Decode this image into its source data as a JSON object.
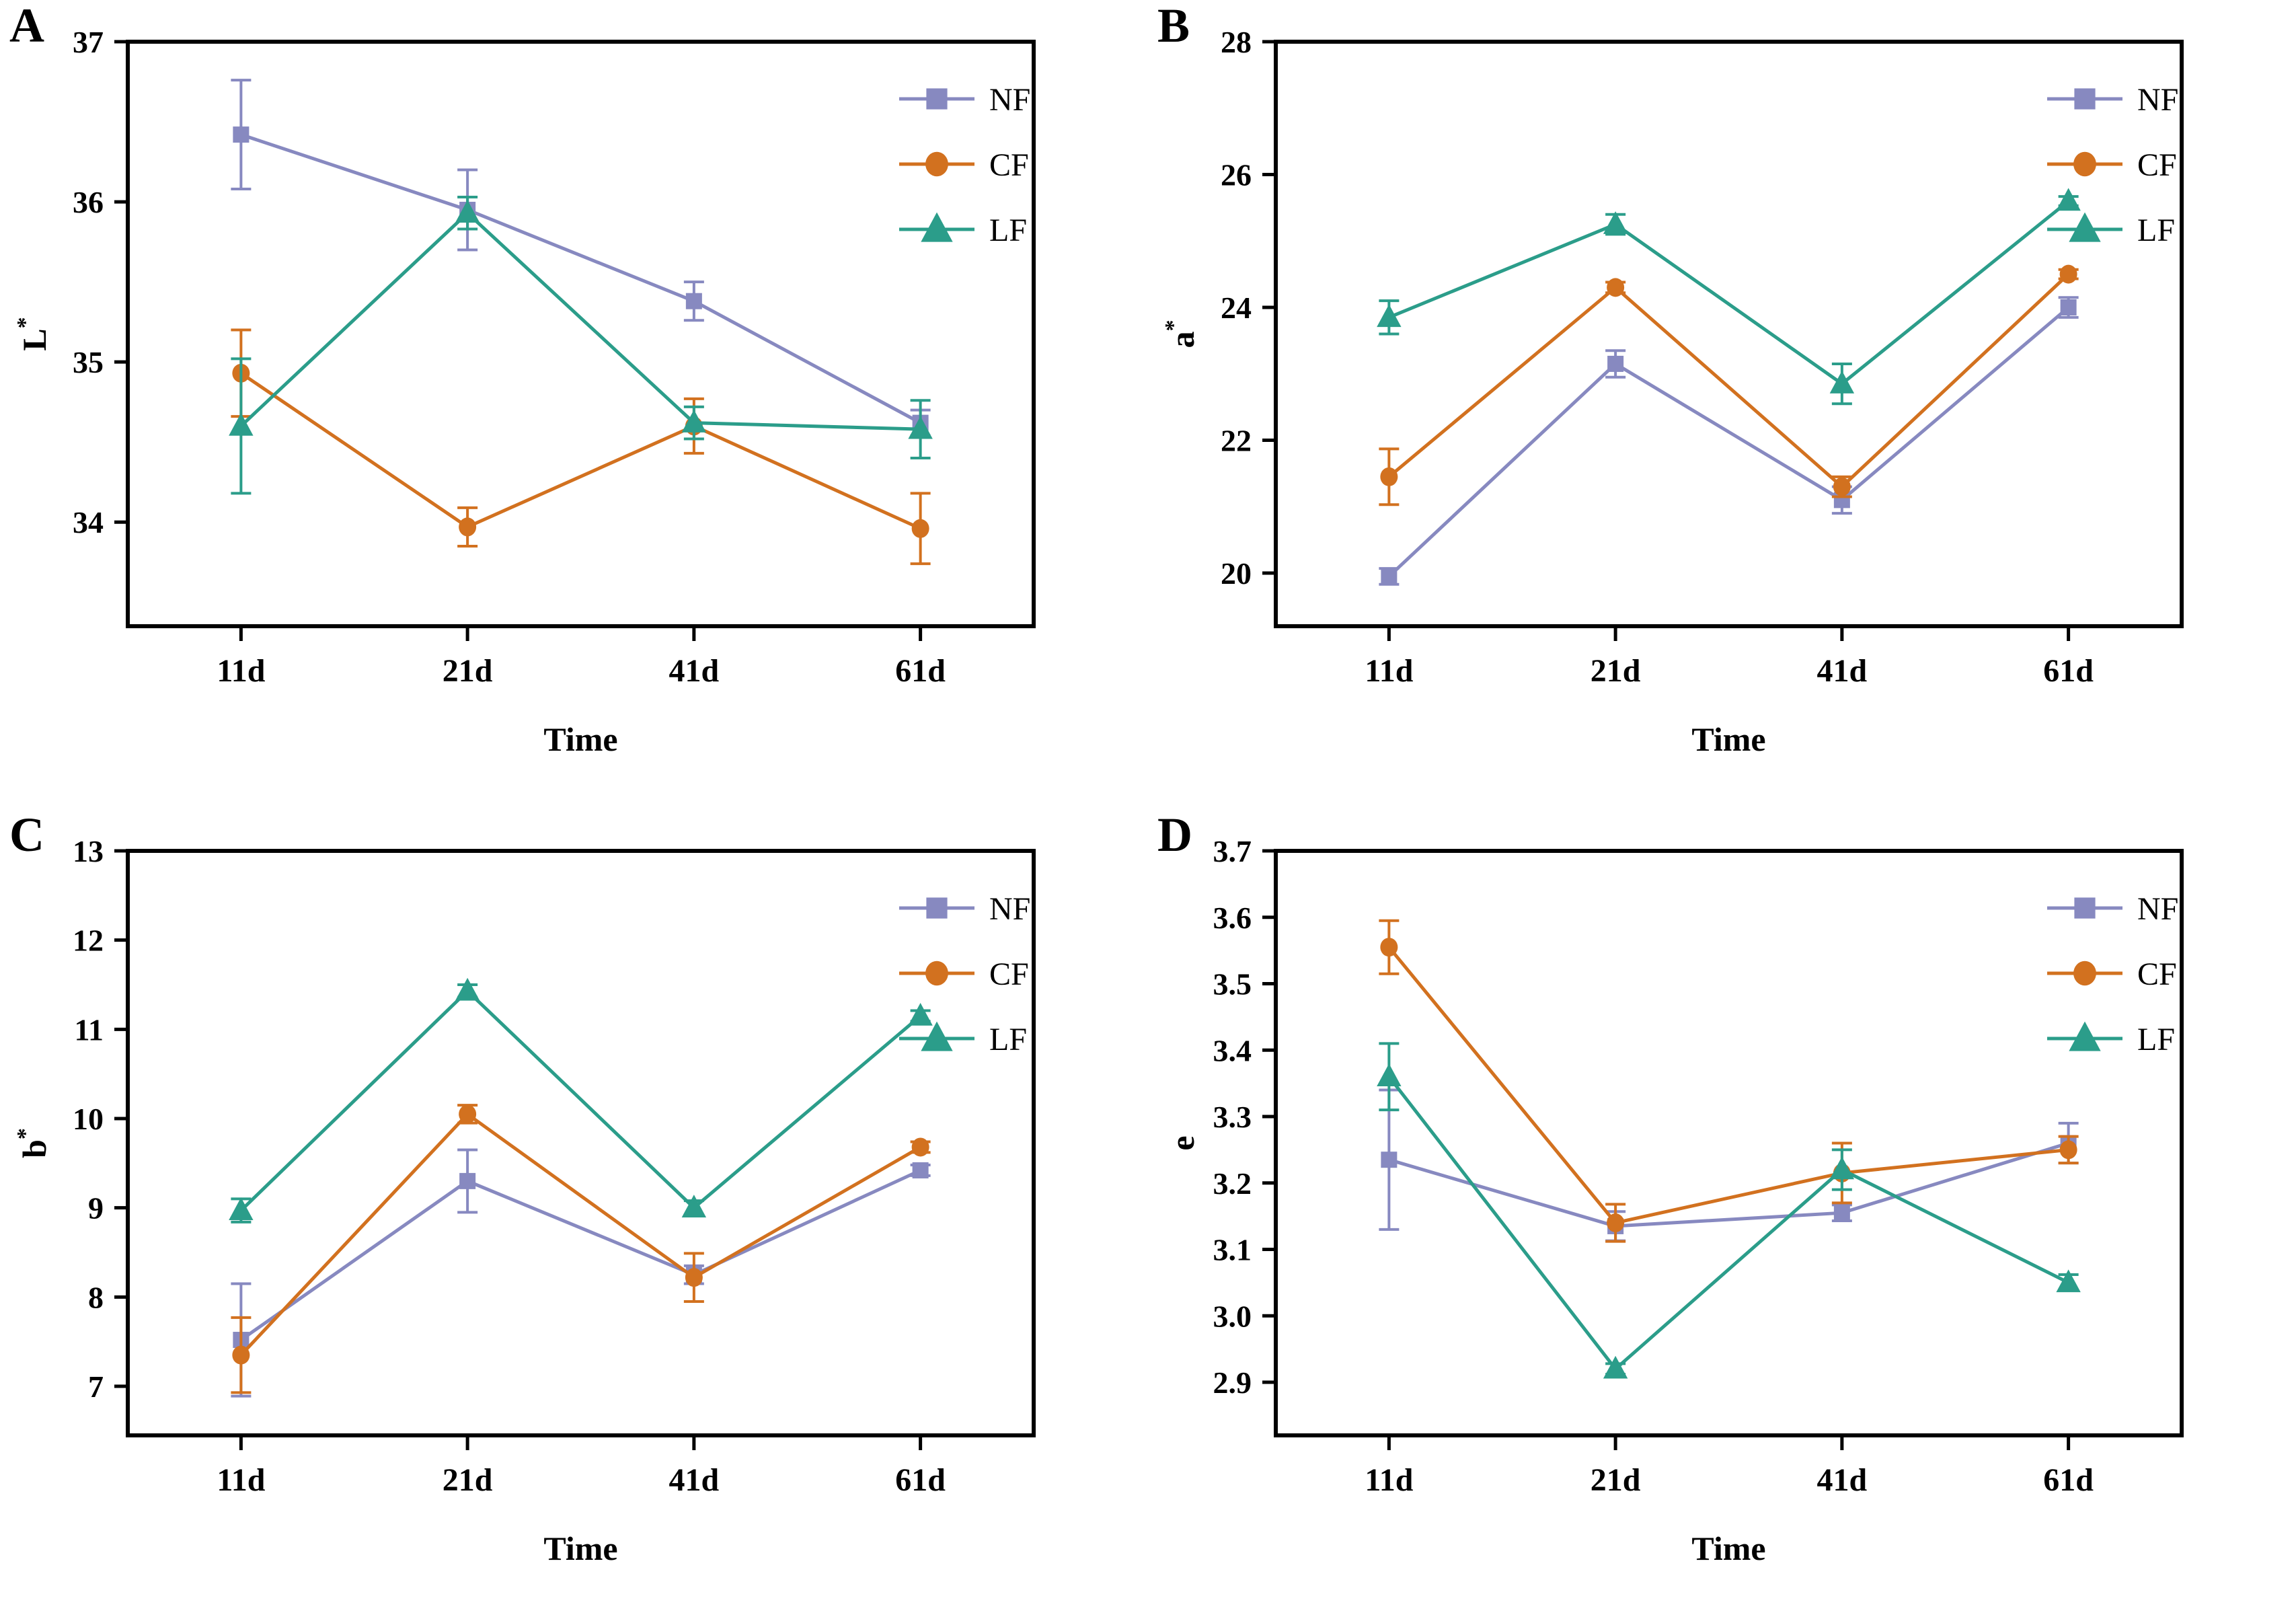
{
  "figure": {
    "background": "#ffffff",
    "panel_letters": [
      "A",
      "B",
      "C",
      "D"
    ],
    "x_axis_title": "Time",
    "x_categories": [
      "11d",
      "21d",
      "41d",
      "61d"
    ],
    "legend_items": [
      "NF",
      "CF",
      "LF"
    ]
  },
  "series_colors": {
    "NF": "#8789c0",
    "CF": "#d2711f",
    "LF": "#2b9d8a"
  },
  "axis_color": "#000000",
  "chart_data": [
    {
      "panel_label": "A",
      "type": "line",
      "title": "",
      "xlabel": "Time",
      "ylabel": "L",
      "ylabel_superscript": "*",
      "categories": [
        "11d",
        "21d",
        "41d",
        "61d"
      ],
      "ylim": [
        33.35,
        37
      ],
      "yticks": [
        34,
        35,
        36,
        37
      ],
      "ytick_decimals": 0,
      "grid": false,
      "legend_position": "top-right",
      "series": [
        {
          "name": "NF",
          "marker": "square",
          "color": "#8789c0",
          "values": [
            36.42,
            35.95,
            35.38,
            34.62
          ],
          "errors": [
            0.34,
            0.25,
            0.12,
            0.08
          ]
        },
        {
          "name": "CF",
          "marker": "circle",
          "color": "#d2711f",
          "values": [
            34.93,
            33.97,
            34.6,
            33.96
          ],
          "errors": [
            0.27,
            0.12,
            0.17,
            0.22
          ]
        },
        {
          "name": "LF",
          "marker": "triangle",
          "color": "#2b9d8a",
          "values": [
            34.6,
            35.93,
            34.62,
            34.58
          ],
          "errors": [
            0.42,
            0.1,
            0.1,
            0.18
          ]
        }
      ]
    },
    {
      "panel_label": "B",
      "type": "line",
      "title": "",
      "xlabel": "Time",
      "ylabel": "a",
      "ylabel_superscript": "*",
      "categories": [
        "11d",
        "21d",
        "41d",
        "61d"
      ],
      "ylim": [
        19.2,
        28
      ],
      "yticks": [
        20,
        22,
        24,
        26,
        28
      ],
      "ytick_decimals": 0,
      "grid": false,
      "legend_position": "top-right",
      "series": [
        {
          "name": "NF",
          "marker": "square",
          "color": "#8789c0",
          "values": [
            19.95,
            23.15,
            21.1,
            24.0
          ],
          "errors": [
            0.12,
            0.2,
            0.2,
            0.15
          ]
        },
        {
          "name": "CF",
          "marker": "circle",
          "color": "#d2711f",
          "values": [
            21.45,
            24.3,
            21.3,
            24.5
          ],
          "errors": [
            0.42,
            0.08,
            0.15,
            0.07
          ]
        },
        {
          "name": "LF",
          "marker": "triangle",
          "color": "#2b9d8a",
          "values": [
            23.85,
            25.25,
            22.85,
            25.6
          ],
          "errors": [
            0.25,
            0.15,
            0.3,
            0.07
          ]
        }
      ]
    },
    {
      "panel_label": "C",
      "type": "line",
      "title": "",
      "xlabel": "Time",
      "ylabel": "b",
      "ylabel_superscript": "*",
      "categories": [
        "11d",
        "21d",
        "41d",
        "61d"
      ],
      "ylim": [
        6.45,
        13
      ],
      "yticks": [
        7,
        8,
        9,
        10,
        11,
        12,
        13
      ],
      "ytick_decimals": 0,
      "grid": false,
      "legend_position": "top-right",
      "series": [
        {
          "name": "NF",
          "marker": "square",
          "color": "#8789c0",
          "values": [
            7.52,
            9.3,
            8.25,
            9.42
          ],
          "errors": [
            0.63,
            0.35,
            0.1,
            0.06
          ]
        },
        {
          "name": "CF",
          "marker": "circle",
          "color": "#d2711f",
          "values": [
            7.35,
            10.05,
            8.22,
            9.68
          ],
          "errors": [
            0.42,
            0.1,
            0.27,
            0.06
          ]
        },
        {
          "name": "LF",
          "marker": "triangle",
          "color": "#2b9d8a",
          "values": [
            8.97,
            11.43,
            9.0,
            11.15
          ],
          "errors": [
            0.13,
            0.07,
            0.08,
            0.06
          ]
        }
      ]
    },
    {
      "panel_label": "D",
      "type": "line",
      "title": "",
      "xlabel": "Time",
      "ylabel": "e",
      "ylabel_superscript": "",
      "categories": [
        "11d",
        "21d",
        "41d",
        "61d"
      ],
      "ylim": [
        2.82,
        3.7
      ],
      "yticks": [
        2.9,
        3.0,
        3.1,
        3.2,
        3.3,
        3.4,
        3.5,
        3.6,
        3.7
      ],
      "ytick_decimals": 1,
      "grid": false,
      "legend_position": "top-right",
      "series": [
        {
          "name": "NF",
          "marker": "square",
          "color": "#8789c0",
          "values": [
            3.235,
            3.135,
            3.155,
            3.26
          ],
          "errors": [
            0.105,
            0.022,
            0.012,
            0.03
          ]
        },
        {
          "name": "CF",
          "marker": "circle",
          "color": "#d2711f",
          "values": [
            3.555,
            3.14,
            3.215,
            3.25
          ],
          "errors": [
            0.04,
            0.028,
            0.045,
            0.02
          ]
        },
        {
          "name": "LF",
          "marker": "triangle",
          "color": "#2b9d8a",
          "values": [
            3.36,
            2.92,
            3.22,
            3.05
          ],
          "errors": [
            0.05,
            0.008,
            0.03,
            0.012
          ]
        }
      ]
    }
  ]
}
